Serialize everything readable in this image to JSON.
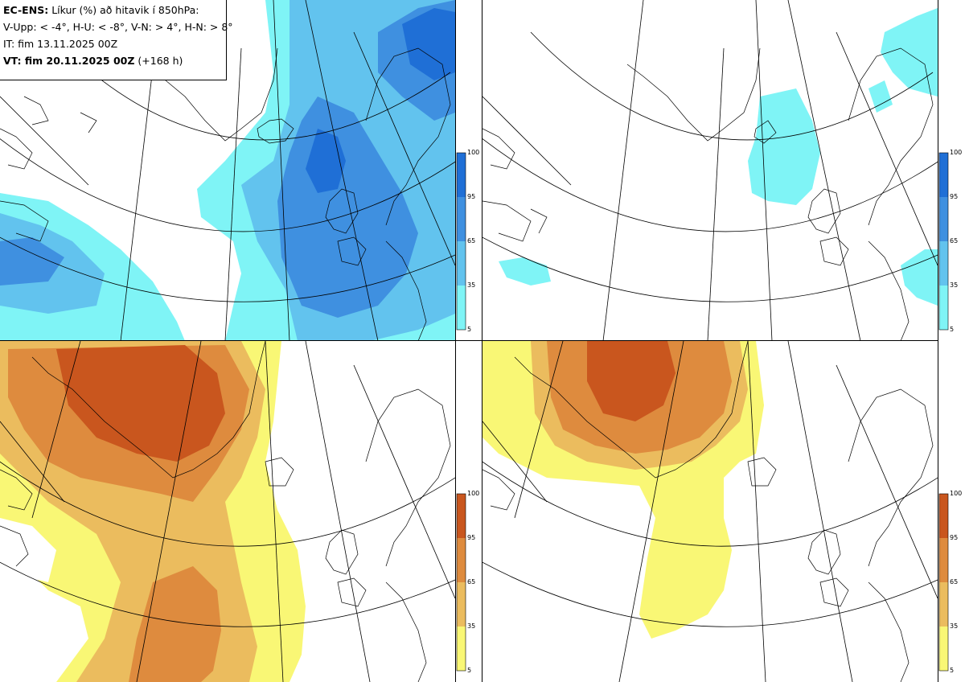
{
  "title": {
    "model_label": "EC-ENS:",
    "parameter": "Líkur (%) að hitavik í 850hPa:",
    "thresholds": "V-Upp: < -4°, H-U: < -8°, V-N: > 4°, H-N: > 8°",
    "initial_time": "IT: fim 13.11.2025 00Z",
    "valid_label": "VT: fim 20.11.2025 00Z",
    "lead_time": "(+168 h)"
  },
  "colorbar_cold": {
    "levels": [
      "100",
      "95",
      "65",
      "35",
      "5"
    ],
    "colors": [
      "#1f6fd6",
      "#3f90e0",
      "#62c3ee",
      "#7ff4f6"
    ]
  },
  "colorbar_warm": {
    "levels": [
      "100",
      "95",
      "65",
      "35",
      "5"
    ],
    "colors": [
      "#c9561e",
      "#de8b3e",
      "#ebbc5e",
      "#f9f775"
    ]
  }
}
